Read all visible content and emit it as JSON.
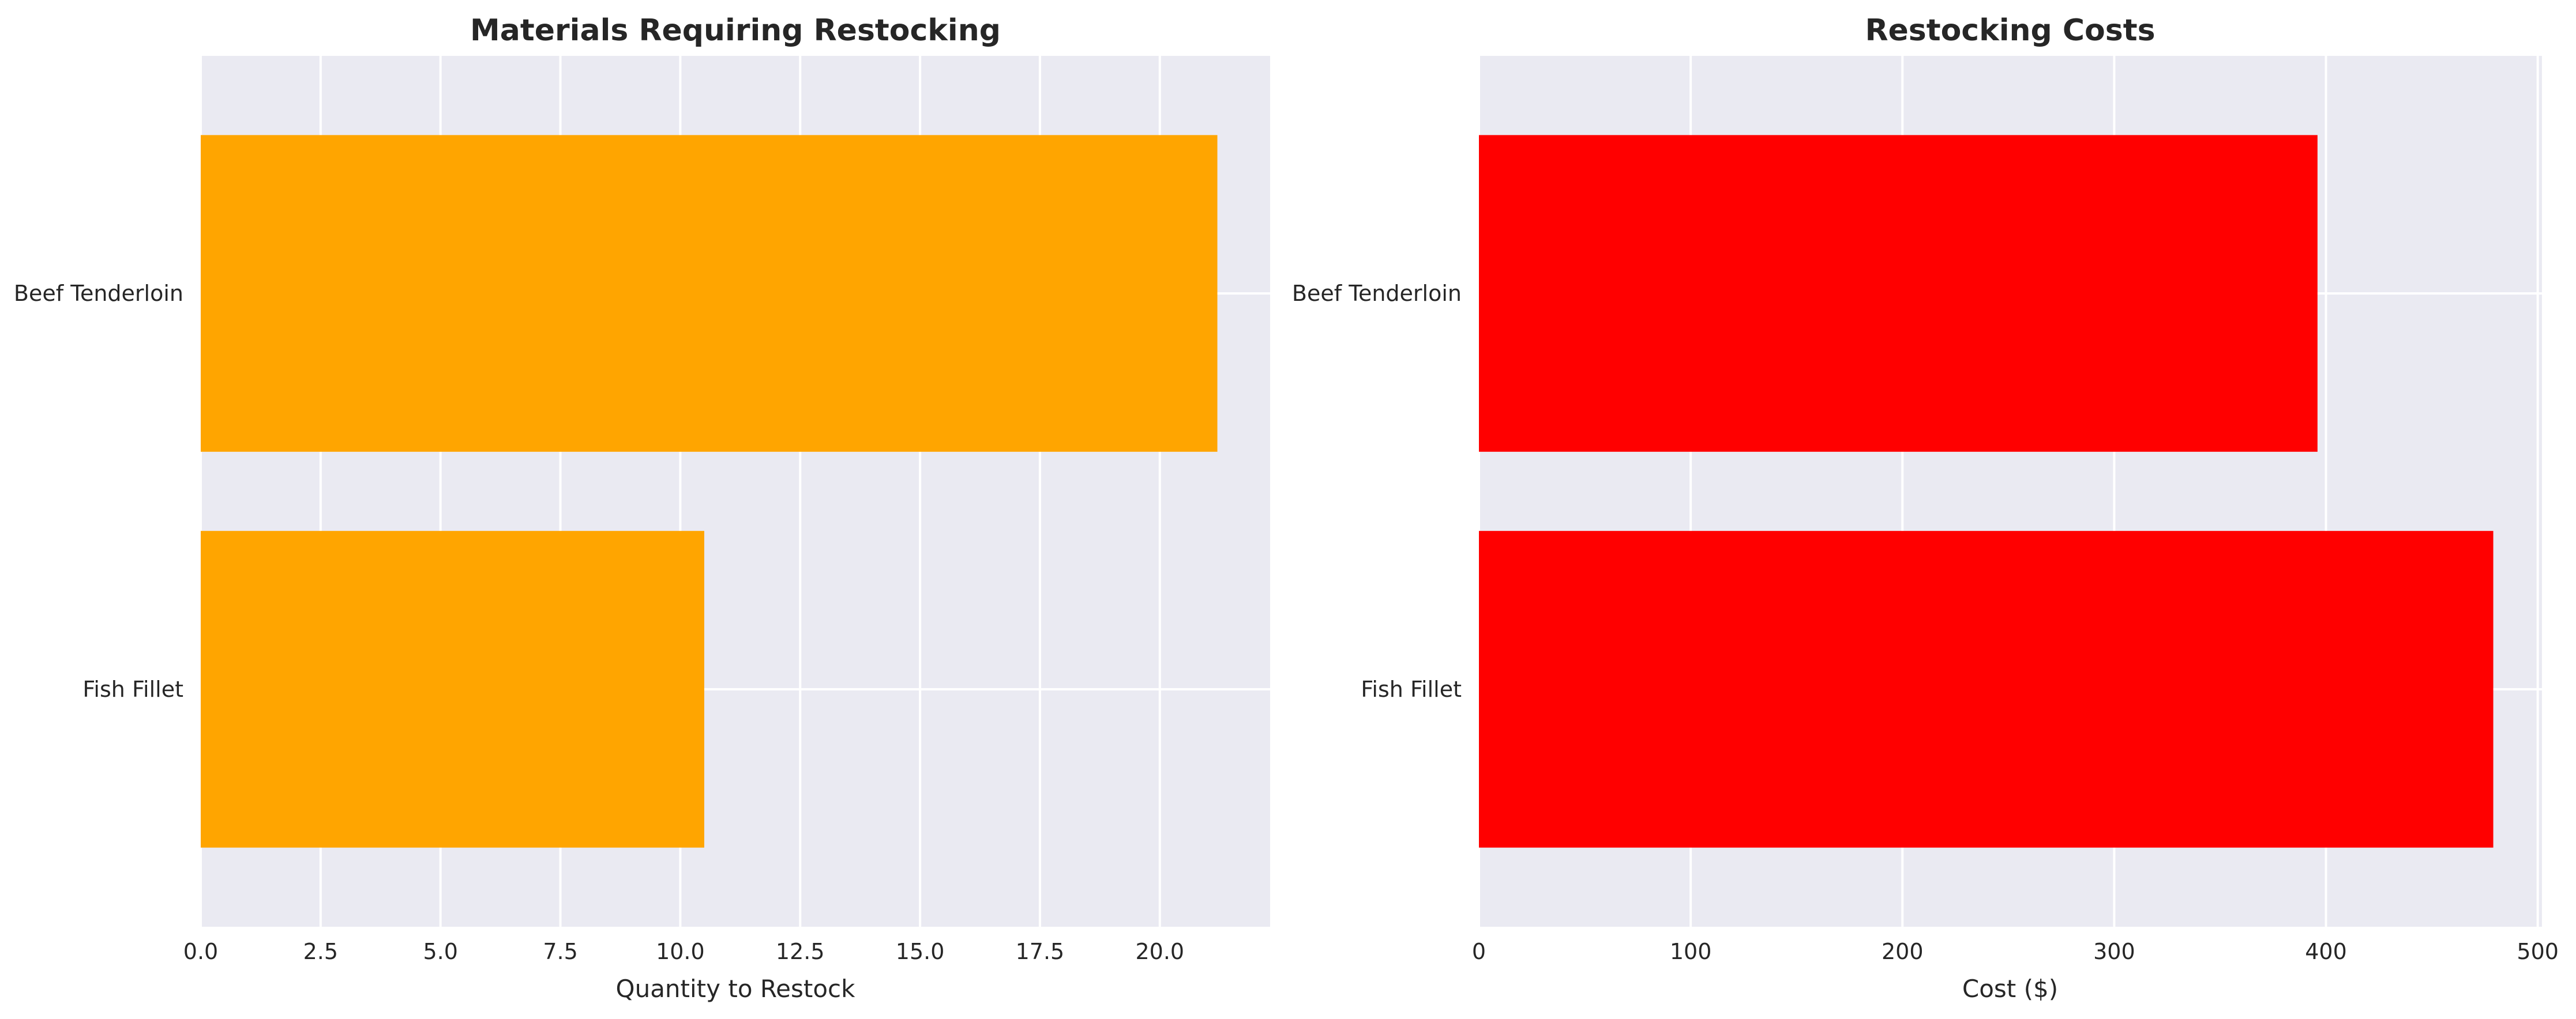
{
  "chart_data": [
    {
      "type": "bar",
      "orientation": "horizontal",
      "title": "Materials Requiring Restocking",
      "categories": [
        "Beef Tenderloin",
        "Fish Fillet"
      ],
      "values": [
        21.2,
        10.5
      ],
      "xlabel": "Quantity to Restock",
      "ylabel": "",
      "xlim": [
        0,
        22.3
      ],
      "xticks": [
        0,
        2.5,
        5,
        7.5,
        10,
        12.5,
        15,
        17.5,
        20
      ],
      "xtick_labels": [
        "0.0",
        "2.5",
        "5.0",
        "7.5",
        "10.0",
        "12.5",
        "15.0",
        "17.5",
        "20.0"
      ],
      "grid": true,
      "bar_color": "#ffa500"
    },
    {
      "type": "bar",
      "orientation": "horizontal",
      "title": "Restocking Costs",
      "categories": [
        "Beef Tenderloin",
        "Fish Fillet"
      ],
      "values": [
        396,
        479
      ],
      "xlabel": "Cost ($)",
      "ylabel": "",
      "xlim": [
        0,
        502
      ],
      "xticks": [
        0,
        100,
        200,
        300,
        400,
        500
      ],
      "xtick_labels": [
        "0",
        "100",
        "200",
        "300",
        "400",
        "500"
      ],
      "grid": true,
      "bar_color": "#ff0000"
    }
  ],
  "colors": {
    "plot_background": "#eaeaf2",
    "grid": "#ffffff",
    "text": "#262626"
  }
}
